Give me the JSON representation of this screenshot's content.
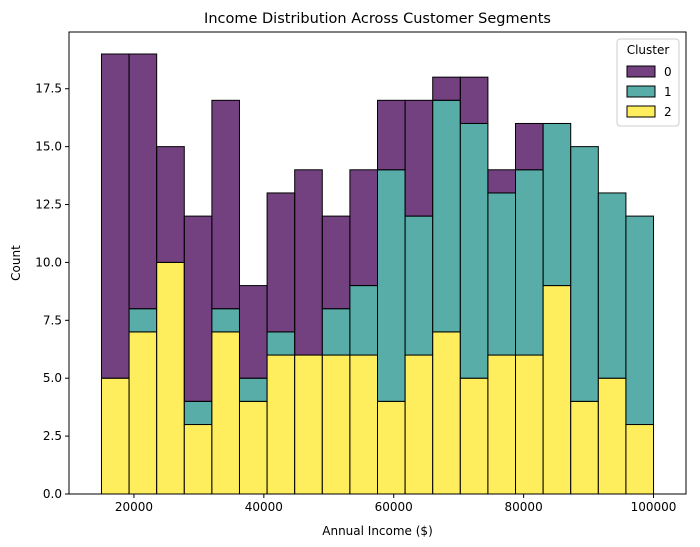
{
  "chart_data": {
    "type": "bar",
    "stacked": true,
    "title": "Income Distribution Across Customer Segments",
    "xlabel": "Annual Income ($)",
    "ylabel": "Count",
    "xlim": [
      10000,
      105000
    ],
    "ylim": [
      0,
      19.95
    ],
    "xticks": [
      20000,
      40000,
      60000,
      80000,
      100000
    ],
    "yticks": [
      "0.0",
      "2.5",
      "5.0",
      "7.5",
      "10.0",
      "12.5",
      "15.0",
      "17.5"
    ],
    "bin_edges": [
      15000,
      19250,
      23500,
      27750,
      32000,
      36250,
      40500,
      44750,
      49000,
      53250,
      57500,
      61750,
      66000,
      70250,
      74500,
      78750,
      83000,
      87250,
      91500,
      95750,
      100000
    ],
    "legend": {
      "title": "Cluster",
      "position": "top-right"
    },
    "series": [
      {
        "name": "2",
        "color": "#fde725",
        "values": [
          5,
          7,
          10,
          3,
          7,
          4,
          6,
          6,
          6,
          6,
          4,
          6,
          7,
          5,
          6,
          6,
          9,
          4,
          5,
          3
        ]
      },
      {
        "name": "1",
        "color": "#21918c",
        "values": [
          0,
          1,
          0,
          1,
          1,
          1,
          1,
          0,
          2,
          3,
          10,
          6,
          10,
          11,
          7,
          8,
          7,
          11,
          8,
          9
        ]
      },
      {
        "name": "0",
        "color": "#440154",
        "values": [
          14,
          11,
          5,
          8,
          9,
          4,
          6,
          8,
          4,
          5,
          3,
          5,
          1,
          2,
          1,
          2,
          0,
          0,
          0,
          0
        ]
      }
    ],
    "legend_order": [
      "0",
      "1",
      "2"
    ],
    "bar_alpha": 0.75
  }
}
